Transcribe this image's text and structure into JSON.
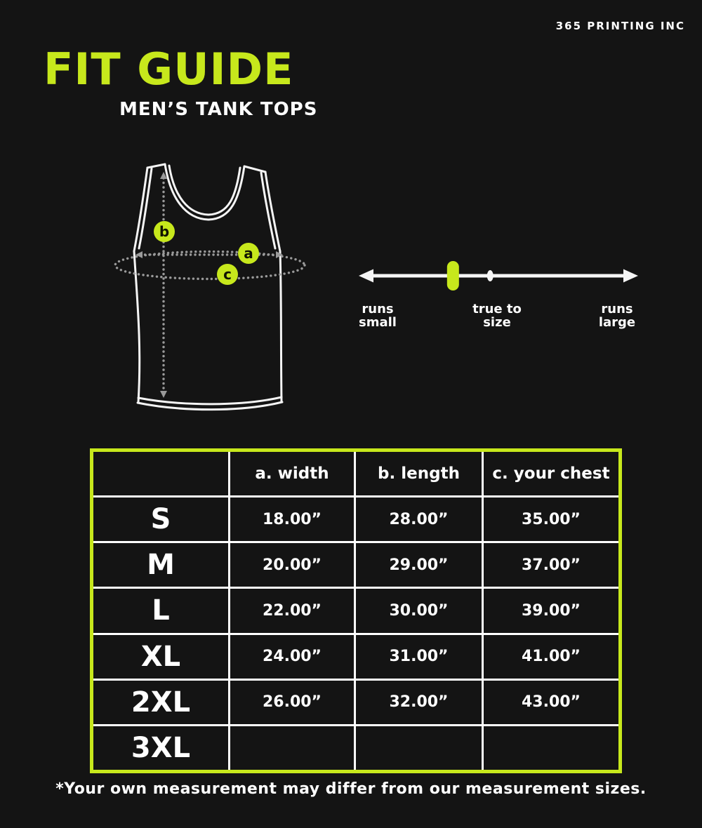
{
  "brand": "365 PRINTING INC",
  "header": {
    "title": "FIT GUIDE",
    "subtitle": "MEN’S TANK TOPS"
  },
  "diagram": {
    "garment": "tank top outline",
    "markers": [
      {
        "label": "a",
        "measure": "width"
      },
      {
        "label": "b",
        "measure": "length"
      },
      {
        "label": "c",
        "measure": "your chest"
      }
    ]
  },
  "fit_scale": {
    "labels": [
      [
        "runs",
        "small"
      ],
      [
        "true to",
        "size"
      ],
      [
        "runs",
        "large"
      ]
    ],
    "marker_fraction": 0.335,
    "reference_dot_fraction": 0.47
  },
  "size_table": {
    "headers": [
      "",
      "a. width",
      "b. length",
      "c. your chest"
    ],
    "rows": [
      [
        "S",
        "18.00”",
        "28.00”",
        "35.00”"
      ],
      [
        "M",
        "20.00”",
        "29.00”",
        "37.00”"
      ],
      [
        "L",
        "22.00”",
        "30.00”",
        "39.00”"
      ],
      [
        "XL",
        "24.00”",
        "31.00”",
        "41.00”"
      ],
      [
        "2XL",
        "26.00”",
        "32.00”",
        "43.00”"
      ],
      [
        "3XL",
        "",
        "",
        ""
      ]
    ]
  },
  "footnote": "*Your own measurement may differ from our measurement sizes.",
  "colors": {
    "accent": "#c7e81c",
    "background": "#141414",
    "text": "#ffffff",
    "dotted": "#9a9a9a"
  }
}
